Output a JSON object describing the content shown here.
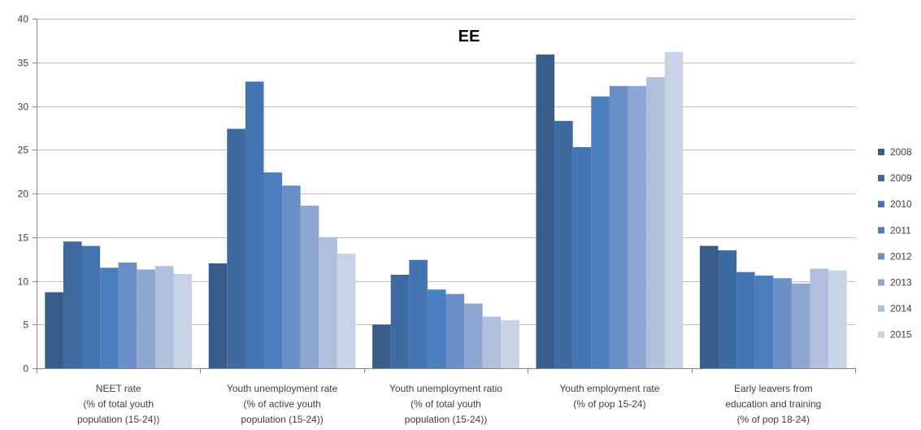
{
  "chart_data": {
    "type": "bar",
    "title": "EE",
    "xlabel": "",
    "ylabel": "",
    "ylim": [
      0,
      40
    ],
    "yticks": [
      0,
      5,
      10,
      15,
      20,
      25,
      30,
      35,
      40
    ],
    "grid": true,
    "legend_position": "right",
    "categories": [
      [
        "NEET rate",
        "(% of total youth",
        "population (15-24))"
      ],
      [
        "Youth unemployment rate",
        "(% of active youth",
        "population (15-24))"
      ],
      [
        "Youth unemployment ratio",
        "(% of total youth",
        "population (15-24))"
      ],
      [
        "Youth employment rate",
        "(% of pop 15-24)"
      ],
      [
        "Early leavers from",
        "education and training",
        "(% of pop 18-24)"
      ]
    ],
    "series": [
      {
        "name": "2008",
        "color": "#385d8a",
        "values": [
          8.7,
          12.0,
          5.0,
          35.9,
          14.0
        ]
      },
      {
        "name": "2009",
        "color": "#3d6aa0",
        "values": [
          14.5,
          27.4,
          10.7,
          28.3,
          13.5
        ]
      },
      {
        "name": "2010",
        "color": "#4373b0",
        "values": [
          14.0,
          32.8,
          12.4,
          25.3,
          11.0
        ]
      },
      {
        "name": "2011",
        "color": "#4a7ebf",
        "values": [
          11.5,
          22.4,
          9.0,
          31.1,
          10.6
        ]
      },
      {
        "name": "2012",
        "color": "#6a8ec7",
        "values": [
          12.1,
          20.9,
          8.5,
          32.3,
          10.3
        ]
      },
      {
        "name": "2013",
        "color": "#8ea6d0",
        "values": [
          11.3,
          18.6,
          7.4,
          32.3,
          9.7
        ]
      },
      {
        "name": "2014",
        "color": "#afbfdc",
        "values": [
          11.7,
          15.0,
          5.9,
          33.3,
          11.4
        ]
      },
      {
        "name": "2015",
        "color": "#c9d3e6",
        "values": [
          10.8,
          13.1,
          5.5,
          36.2,
          11.2
        ]
      }
    ]
  }
}
